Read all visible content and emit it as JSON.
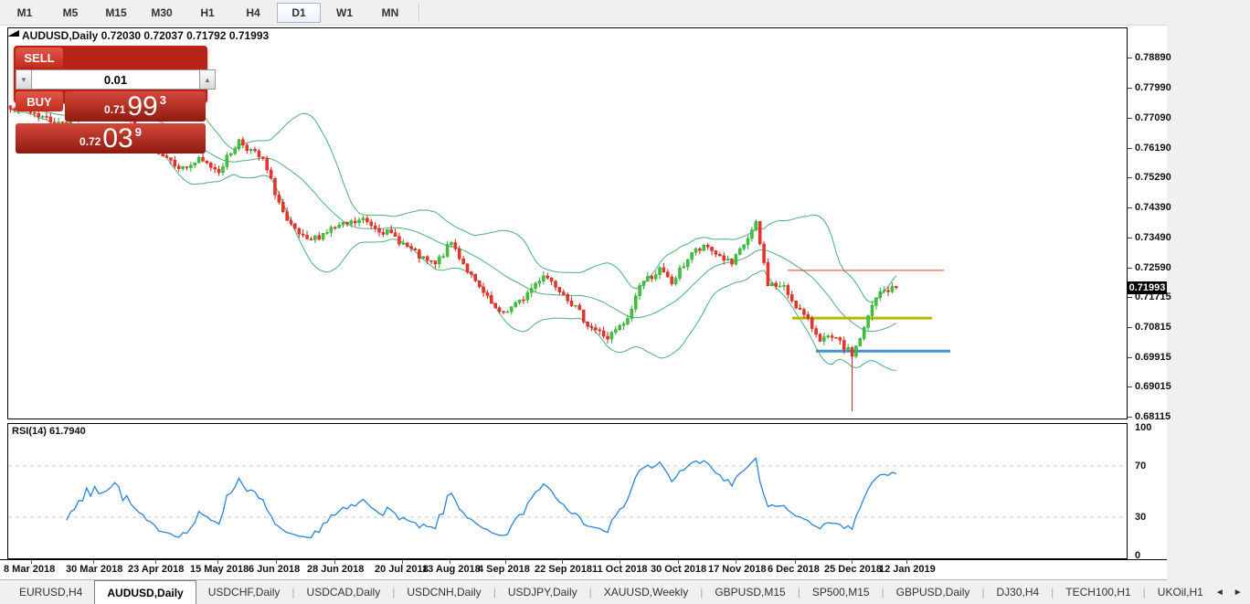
{
  "toolbar": {
    "timeframes": [
      {
        "label": "M1"
      },
      {
        "label": "M5"
      },
      {
        "label": "M15"
      },
      {
        "label": "M30"
      },
      {
        "label": "H1"
      },
      {
        "label": "H4"
      },
      {
        "label": "D1"
      },
      {
        "label": "W1"
      },
      {
        "label": "MN"
      }
    ],
    "active_timeframe": "D1"
  },
  "trade_panel": {
    "sell_label": "SELL",
    "buy_label": "BUY",
    "volume": "0.01",
    "sell_price": {
      "small": "0.71",
      "big": "99",
      "sup": "3"
    },
    "buy_price": {
      "small": "0.72",
      "big": "03",
      "sup": "9"
    }
  },
  "chart_data": {
    "type": "candlestick",
    "symbol": "AUDUSD",
    "timeframe": "Daily",
    "title": "AUDUSD,Daily  0.72030 0.72037 0.71792 0.71993",
    "last_bar": {
      "open": "0.72030",
      "high": "0.72037",
      "low": "0.71792",
      "close": "0.71993"
    },
    "indicators": [
      {
        "name": "Bollinger Bands",
        "color": "#4cae7f"
      },
      {
        "name": "RSI",
        "period": 14,
        "value": "61.7940",
        "label": "RSI(14) 61.7940",
        "levels": [
          70,
          30
        ],
        "range": [
          0,
          100
        ]
      }
    ],
    "price_axis": {
      "ticks": [
        0.7889,
        0.7799,
        0.7709,
        0.7619,
        0.7529,
        0.7439,
        0.7349,
        0.7259,
        0.71715,
        0.70815,
        0.69915,
        0.69015,
        0.68115
      ],
      "current_price": "0.71993",
      "current_price_value": 0.71993
    },
    "rsi_axis_ticks": [
      100,
      70,
      30,
      0
    ],
    "time_axis": [
      {
        "label": "8 Mar 2018",
        "x": 4
      },
      {
        "label": "30 Mar 2018",
        "x": 72
      },
      {
        "label": "23 Apr 2018",
        "x": 140
      },
      {
        "label": "15 May 2018",
        "x": 208
      },
      {
        "label": "6 Jun 2018",
        "x": 272
      },
      {
        "label": "28 Jun 2018",
        "x": 336
      },
      {
        "label": "20 Jul 2018",
        "x": 410
      },
      {
        "label": "13 Aug 2018",
        "x": 462
      },
      {
        "label": "4 Sep 2018",
        "x": 523
      },
      {
        "label": "22 Sep 2018",
        "x": 585
      },
      {
        "label": "11 Oct 2018",
        "x": 648
      },
      {
        "label": "30 Oct 2018",
        "x": 712
      },
      {
        "label": "17 Nov 2018",
        "x": 775
      },
      {
        "label": "6 Dec 2018",
        "x": 840
      },
      {
        "label": "25 Dec 2018",
        "x": 902
      },
      {
        "label": "12 Jan 2019",
        "x": 962
      }
    ],
    "hlines": [
      {
        "name": "resistance-line-red",
        "color": "#e23d2e",
        "price": 0.7251,
        "x1": 862,
        "x2": 1033,
        "w": 1
      },
      {
        "name": "support-line-yellow",
        "color": "#b3b800",
        "price": 0.7108,
        "x1": 867,
        "x2": 1020,
        "w": 3
      },
      {
        "name": "support-line-blue",
        "color": "#4a8fd3",
        "price": 0.7009,
        "x1": 893,
        "x2": 1040,
        "w": 3
      }
    ],
    "colors": {
      "up": "#3ec43e",
      "up_border": "#2aa82a",
      "down": "#ea352c",
      "down_border": "#cf2218",
      "bands": "#4cae7f",
      "rsi_line": "#2a84d8",
      "rsi_levels": "#c8c8c8"
    },
    "series": {
      "count": 222,
      "x0": 10,
      "dx": 4.386,
      "seed": 7,
      "noise": 0.0011,
      "waypoints": [
        [
          0,
          0.7745
        ],
        [
          6,
          0.7722
        ],
        [
          12,
          0.769
        ],
        [
          18,
          0.7718
        ],
        [
          26,
          0.774
        ],
        [
          30,
          0.77
        ],
        [
          37,
          0.761
        ],
        [
          43,
          0.7556
        ],
        [
          47,
          0.758
        ],
        [
          52,
          0.7552
        ],
        [
          57,
          0.764
        ],
        [
          63,
          0.758
        ],
        [
          69,
          0.7392
        ],
        [
          74,
          0.7335
        ],
        [
          80,
          0.7375
        ],
        [
          88,
          0.7402
        ],
        [
          96,
          0.735
        ],
        [
          103,
          0.7282
        ],
        [
          106,
          0.7268
        ],
        [
          110,
          0.7334
        ],
        [
          116,
          0.7212
        ],
        [
          122,
          0.7118
        ],
        [
          127,
          0.7155
        ],
        [
          133,
          0.724
        ],
        [
          138,
          0.7186
        ],
        [
          144,
          0.709
        ],
        [
          149,
          0.7048
        ],
        [
          154,
          0.71
        ],
        [
          157,
          0.721
        ],
        [
          162,
          0.7252
        ],
        [
          165,
          0.7212
        ],
        [
          170,
          0.7305
        ],
        [
          174,
          0.732
        ],
        [
          180,
          0.7268
        ],
        [
          186,
          0.7388
        ],
        [
          189,
          0.7212
        ],
        [
          193,
          0.7198
        ],
        [
          197,
          0.713
        ],
        [
          202,
          0.7048
        ],
        [
          206,
          0.7042
        ],
        [
          210,
          0.6998
        ],
        [
          213,
          0.7075
        ],
        [
          215,
          0.7143
        ],
        [
          217,
          0.7185
        ],
        [
          219,
          0.7192
        ],
        [
          221,
          0.71993
        ]
      ],
      "spike": {
        "index": 210,
        "low": 0.6828
      },
      "final_close": 0.71993
    }
  },
  "tabs": {
    "items": [
      {
        "label": "EURUSD,H4"
      },
      {
        "label": "AUDUSD,Daily"
      },
      {
        "label": "USDCHF,Daily"
      },
      {
        "label": "USDCAD,Daily"
      },
      {
        "label": "USDCNH,Daily"
      },
      {
        "label": "USDJPY,Daily"
      },
      {
        "label": "XAUUSD,Weekly"
      },
      {
        "label": "GBPUSD,M15"
      },
      {
        "label": "SP500,M15"
      },
      {
        "label": "GBPUSD,Daily"
      },
      {
        "label": "DJ30,H4"
      },
      {
        "label": "TECH100,H1"
      },
      {
        "label": "UKOil,H1"
      }
    ],
    "active_index": 1,
    "scroll_left": "◄",
    "scroll_right": "►"
  }
}
